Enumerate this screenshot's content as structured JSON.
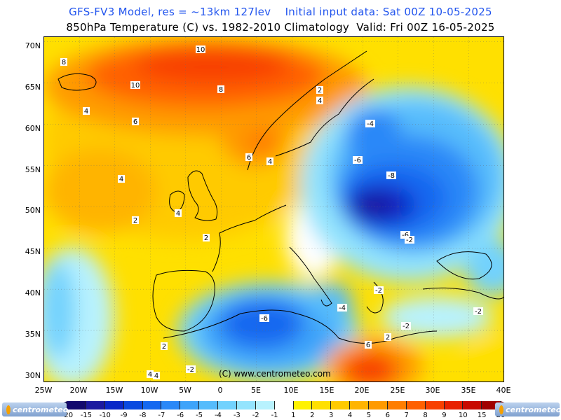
{
  "header": {
    "line1": "GFS-FV3 Model, res = ~13km 127lev    Initial input data: Sat 00Z 10-05-2025",
    "line2": "850hPa Temperature (C) vs. 1982-2010 Climatology  Valid: Fri 00Z 16-05-2025"
  },
  "map": {
    "copyright": "(C) www.centrometeo.com",
    "lat_labels": [
      "70N",
      "65N",
      "60N",
      "55N",
      "50N",
      "45N",
      "40N",
      "35N",
      "30N"
    ],
    "lon_labels": [
      "25W",
      "20W",
      "15W",
      "10W",
      "5W",
      "0",
      "5E",
      "10E",
      "15E",
      "20E",
      "25E",
      "30E",
      "35E",
      "40E"
    ],
    "contour_labels": [
      "8",
      "10",
      "10",
      "8",
      "4",
      "6",
      "4",
      "6",
      "4",
      "2",
      "4",
      "2",
      "4",
      "4",
      "-6",
      "-8",
      "-6",
      "-4",
      "-2",
      "-2",
      "-2",
      "-6",
      "-4",
      "-2",
      "6",
      "2",
      "4",
      "2",
      "2",
      "-2"
    ]
  },
  "colorbar": {
    "labels": [
      "-20",
      "-15",
      "-10",
      "-9",
      "-8",
      "-7",
      "-6",
      "-5",
      "-4",
      "-3",
      "-2",
      "-1",
      "1",
      "2",
      "3",
      "4",
      "5",
      "6",
      "7",
      "8",
      "9",
      "10",
      "15",
      "20"
    ],
    "colors": [
      "#120a6e",
      "#1c1aa0",
      "#0a28c8",
      "#0a4ae0",
      "#1468f0",
      "#2a88f8",
      "#3ea4fa",
      "#56bcfc",
      "#72d2fd",
      "#94e4fd",
      "#b8f2fe",
      "#ffffff",
      "#fff200",
      "#ffe000",
      "#ffca00",
      "#ffb400",
      "#ff9a00",
      "#ff7e00",
      "#ff6000",
      "#f84000",
      "#e82000",
      "#c80a00",
      "#a00000"
    ],
    "left_triangle_color": "#120a50",
    "right_triangle_color": "#800000"
  },
  "logo": {
    "text": "centrometeo"
  },
  "colors": {
    "title_blue": "#2255ee",
    "positive_anomaly": "#ff9a00",
    "negative_anomaly": "#0a28c8"
  }
}
